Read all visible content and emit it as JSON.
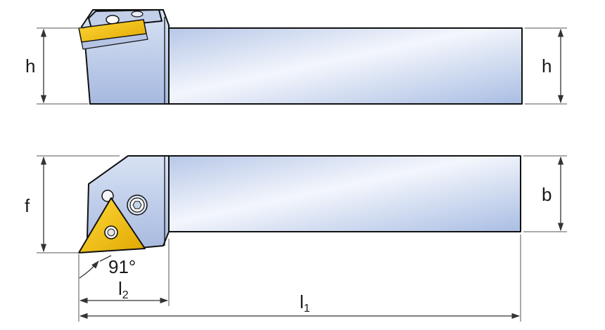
{
  "labels": {
    "h_left": "h",
    "h_right": "h",
    "f": "f",
    "b": "b",
    "angle": "91°",
    "l2_main": "l",
    "l2_sub": "2",
    "l1_main": "l",
    "l1_sub": "1"
  },
  "colors": {
    "body_light": "#eef2fa",
    "body_mid": "#c7d4ee",
    "body_dark": "#9fb4dc",
    "insert": "#f2c200",
    "insert_dark": "#c99a00",
    "outline": "#111111"
  }
}
